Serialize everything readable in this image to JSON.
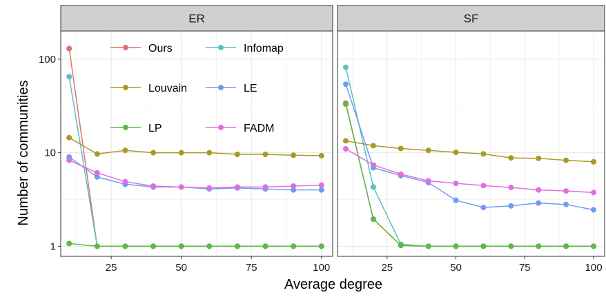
{
  "chart_data": {
    "type": "line",
    "xlabel": "Average degree",
    "ylabel": "Number of communities",
    "x_ticks": [
      25,
      50,
      75,
      100
    ],
    "y_ticks": [
      1,
      10,
      100
    ],
    "y_scale": "log",
    "xlim": [
      7,
      104
    ],
    "ylim": [
      0.78,
      200
    ],
    "x": [
      10,
      20,
      30,
      40,
      50,
      60,
      70,
      80,
      90,
      100
    ],
    "legend_position": "inside top-left of first panel",
    "series_colors": {
      "Ours": "#e0716b",
      "Infomap": "#5bbfc3",
      "Louvain": "#a89a24",
      "LE": "#6f9cf0",
      "LP": "#5fb847",
      "FADM": "#df6fe0"
    },
    "legend": [
      "Ours",
      "Infomap",
      "Louvain",
      "LE",
      "LP",
      "FADM"
    ],
    "panels": [
      {
        "title": "ER",
        "series": [
          {
            "name": "Ours",
            "values": [
              130,
              1,
              1,
              1,
              1,
              1,
              1,
              1,
              1,
              1
            ]
          },
          {
            "name": "Infomap",
            "values": [
              65,
              1,
              1,
              1,
              1,
              1,
              1,
              1,
              1,
              1
            ]
          },
          {
            "name": "Louvain",
            "values": [
              14.5,
              9.7,
              10.6,
              10.0,
              10.0,
              10.0,
              9.6,
              9.6,
              9.4,
              9.3
            ]
          },
          {
            "name": "LE",
            "values": [
              9.0,
              5.5,
              4.6,
              4.3,
              4.3,
              4.1,
              4.2,
              4.1,
              4.0,
              4.0
            ]
          },
          {
            "name": "LP",
            "values": [
              1.07,
              1,
              1,
              1,
              1,
              1,
              1,
              1,
              1,
              1
            ]
          },
          {
            "name": "FADM",
            "values": [
              8.3,
              6.1,
              4.9,
              4.4,
              4.3,
              4.2,
              4.3,
              4.3,
              4.4,
              4.5
            ]
          }
        ]
      },
      {
        "title": "SF",
        "series": [
          {
            "name": "Ours",
            "values": [
              34,
              1.95,
              1.02,
              1,
              1,
              1,
              1,
              1,
              1,
              1
            ]
          },
          {
            "name": "Infomap",
            "values": [
              82,
              4.3,
              1.05,
              1,
              1,
              1,
              1,
              1,
              1,
              1
            ]
          },
          {
            "name": "Louvain",
            "values": [
              13.4,
              11.9,
              11.1,
              10.6,
              10.1,
              9.7,
              8.8,
              8.7,
              8.3,
              8.0
            ]
          },
          {
            "name": "LE",
            "values": [
              54,
              6.9,
              5.7,
              4.8,
              3.1,
              2.6,
              2.7,
              2.9,
              2.8,
              2.45
            ]
          },
          {
            "name": "LP",
            "values": [
              33,
              1.95,
              1.02,
              1,
              1,
              1,
              1,
              1,
              1,
              1
            ]
          },
          {
            "name": "FADM",
            "values": [
              11.0,
              7.4,
              5.9,
              5.0,
              4.7,
              4.45,
              4.25,
              4.0,
              3.9,
              3.75
            ]
          }
        ]
      }
    ]
  }
}
